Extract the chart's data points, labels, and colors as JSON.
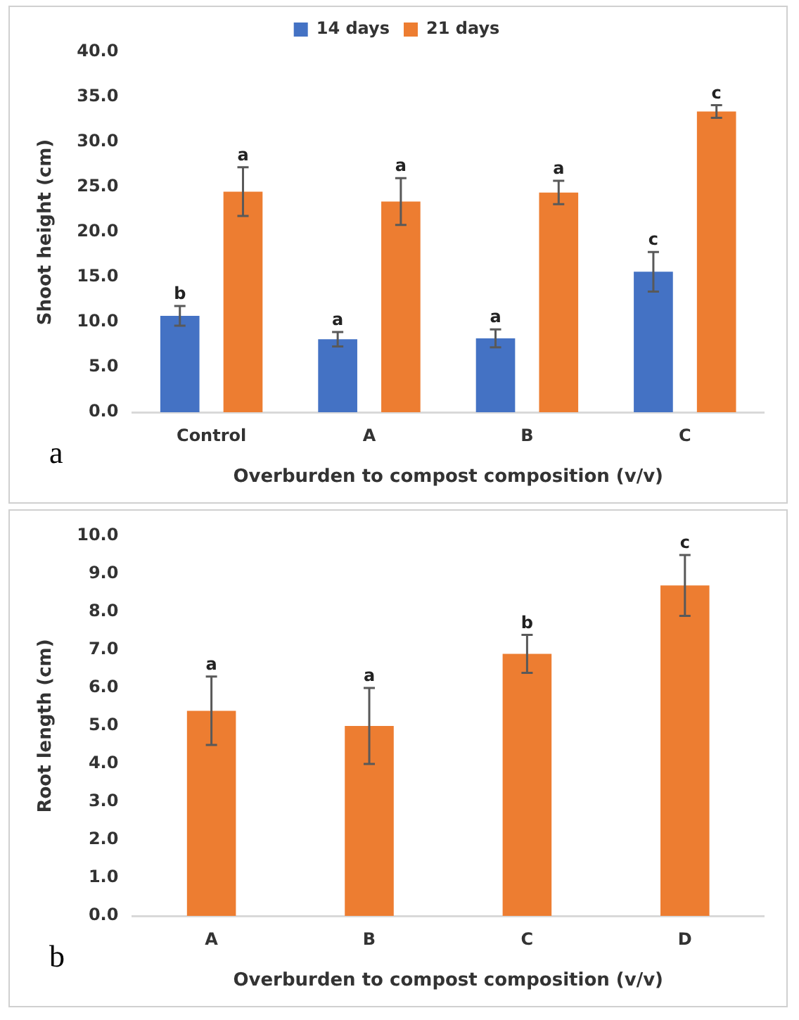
{
  "chart_data": [
    {
      "type": "bar",
      "ylabel": "Shoot height (cm)",
      "xlabel": "Overburden to compost composition (v/v)",
      "categories": [
        "Control",
        "A",
        "B",
        "C"
      ],
      "series": [
        {
          "name": "14 days",
          "color": "#4472c4",
          "values": [
            10.7,
            8.1,
            8.2,
            15.6
          ],
          "errors": [
            1.1,
            0.8,
            1.0,
            2.2
          ],
          "value_labels": [
            "b",
            "a",
            "a",
            "c"
          ]
        },
        {
          "name": "21 days",
          "color": "#ed7d31",
          "values": [
            24.5,
            23.4,
            24.4,
            33.4
          ],
          "errors": [
            2.7,
            2.6,
            1.3,
            0.7
          ],
          "value_labels": [
            "a",
            "a",
            "a",
            "c"
          ]
        }
      ],
      "ylim": [
        0,
        40
      ],
      "yticks": [
        {
          "value": 0,
          "label": "0.0"
        },
        {
          "value": 5,
          "label": "5.0"
        },
        {
          "value": 10,
          "label": "10.0"
        },
        {
          "value": 15,
          "label": "15.0"
        },
        {
          "value": 20,
          "label": "20.0"
        },
        {
          "value": 25,
          "label": "25.0"
        },
        {
          "value": 30,
          "label": "30.0"
        },
        {
          "value": 35,
          "label": "35.0"
        },
        {
          "value": 40,
          "label": "40.0"
        }
      ],
      "grid": false,
      "legend": "top",
      "annotations": [
        "a"
      ]
    },
    {
      "type": "bar",
      "ylabel": "Root length (cm)",
      "xlabel": "Overburden to compost composition (v/v)",
      "categories": [
        "A",
        "B",
        "C",
        "D"
      ],
      "series": [
        {
          "color": "#ed7d31",
          "values": [
            5.4,
            5.0,
            6.9,
            8.7
          ],
          "errors": [
            0.9,
            1.0,
            0.5,
            0.8
          ],
          "value_labels": [
            "a",
            "a",
            "b",
            "c"
          ]
        }
      ],
      "ylim": [
        0,
        10
      ],
      "yticks": [
        {
          "value": 0,
          "label": "0.0"
        },
        {
          "value": 1,
          "label": "1.0"
        },
        {
          "value": 2,
          "label": "2.0"
        },
        {
          "value": 3,
          "label": "3.0"
        },
        {
          "value": 4,
          "label": "4.0"
        },
        {
          "value": 5,
          "label": "5.0"
        },
        {
          "value": 6,
          "label": "6.0"
        },
        {
          "value": 7,
          "label": "7.0"
        },
        {
          "value": 8,
          "label": "8.0"
        },
        {
          "value": 9,
          "label": "9.0"
        },
        {
          "value": 10,
          "label": "10.0"
        }
      ],
      "grid": false,
      "annotations": [
        "b"
      ]
    }
  ]
}
